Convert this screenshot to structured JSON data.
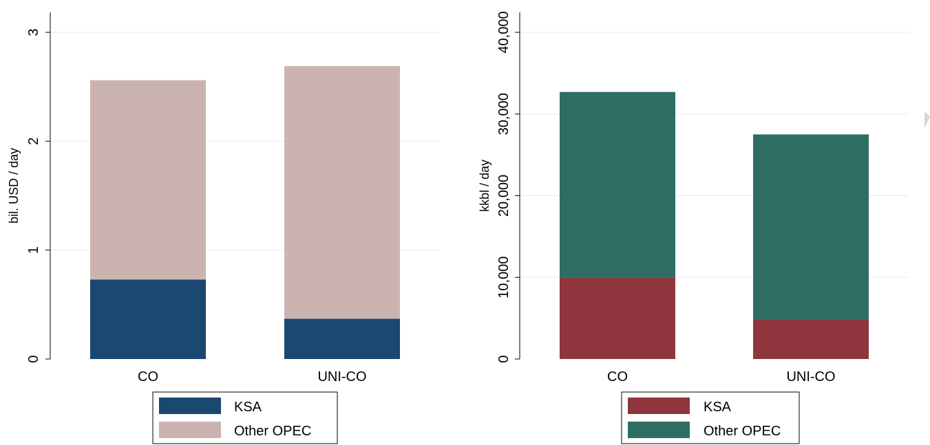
{
  "chart_data": [
    {
      "type": "bar",
      "stacked": true,
      "categories": [
        "CO",
        "UNI-CO"
      ],
      "ylabel": "bil. USD / day",
      "ylim": [
        0,
        3
      ],
      "yticks": [
        "0",
        "1",
        "2",
        "3"
      ],
      "grid": true,
      "legend_position": "bottom",
      "series": [
        {
          "name": "KSA",
          "values": [
            0.73,
            0.37
          ],
          "color": "#1b4870"
        },
        {
          "name": "Other OPEC",
          "values": [
            1.83,
            2.32
          ],
          "color": "#cbb4b0"
        }
      ]
    },
    {
      "type": "bar",
      "stacked": true,
      "categories": [
        "CO",
        "UNI-CO"
      ],
      "ylabel": "kkbl / day",
      "ylim": [
        0,
        40000
      ],
      "yticks": [
        "0",
        "10,000",
        "20,000",
        "30,000",
        "40,000"
      ],
      "grid": true,
      "legend_position": "bottom",
      "series": [
        {
          "name": "KSA",
          "values": [
            10000,
            4850
          ],
          "color": "#8e353e"
        },
        {
          "name": "Other OPEC",
          "values": [
            22700,
            22650
          ],
          "color": "#2e6d63"
        }
      ]
    }
  ]
}
